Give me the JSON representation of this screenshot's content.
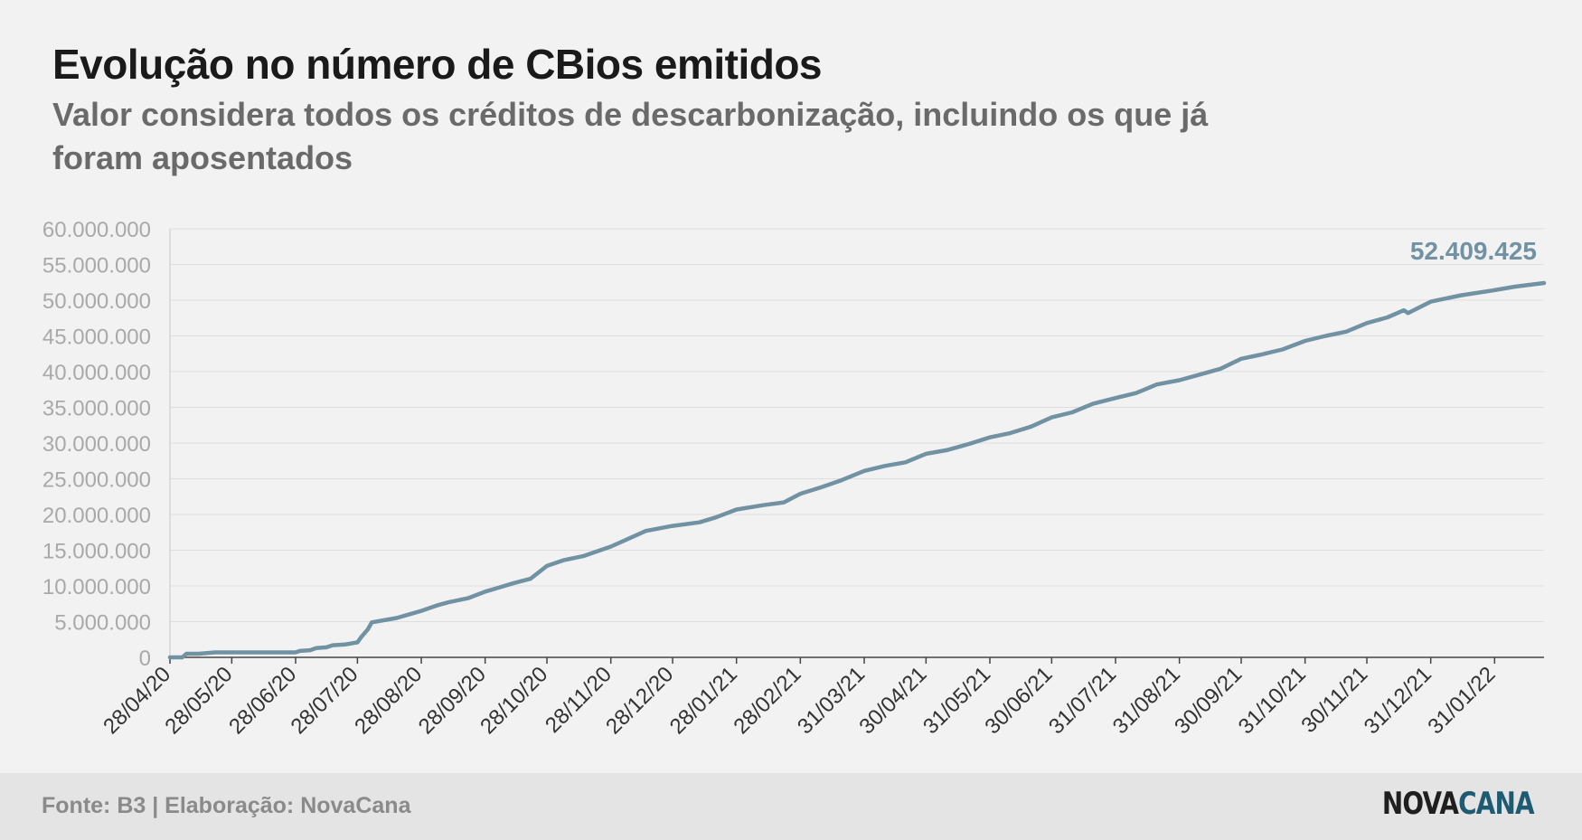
{
  "header": {
    "title": "Evolução no número de CBios emitidos",
    "subtitle": "Valor considera todos os créditos de descarbonização, incluindo os que já foram aposentados"
  },
  "footer": {
    "source": "Fonte: B3 | Elaboração: NovaCana",
    "logo_part1": "NOVA",
    "logo_part2": "CANA"
  },
  "chart_data": {
    "type": "line",
    "title": "Evolução no número de CBios emitidos",
    "subtitle": "Valor considera todos os créditos de descarbonização, incluindo os que já foram aposentados",
    "xlabel": "",
    "ylabel": "",
    "ylim": [
      0,
      60000000
    ],
    "yticks": [
      0,
      5000000,
      10000000,
      15000000,
      20000000,
      25000000,
      30000000,
      35000000,
      40000000,
      45000000,
      50000000,
      55000000,
      60000000
    ],
    "ytick_labels": [
      "0",
      "5.000.000",
      "10.000.000",
      "15.000.000",
      "20.000.000",
      "25.000.000",
      "30.000.000",
      "35.000.000",
      "40.000.000",
      "45.000.000",
      "50.000.000",
      "55.000.000",
      "60.000.000"
    ],
    "xlim": [
      "2020-04-28",
      "2022-02-24"
    ],
    "xticks": [
      "2020-04-28",
      "2020-05-28",
      "2020-06-28",
      "2020-07-28",
      "2020-08-28",
      "2020-09-28",
      "2020-10-28",
      "2020-11-28",
      "2020-12-28",
      "2021-01-28",
      "2021-02-28",
      "2021-03-31",
      "2021-04-30",
      "2021-05-31",
      "2021-06-30",
      "2021-07-31",
      "2021-08-31",
      "2021-09-30",
      "2021-10-31",
      "2021-11-30",
      "2021-12-31",
      "2022-01-31"
    ],
    "xtick_labels": [
      "28/04/20",
      "28/05/20",
      "28/06/20",
      "28/07/20",
      "28/08/20",
      "28/09/20",
      "28/10/20",
      "28/11/20",
      "28/12/20",
      "28/01/21",
      "28/02/21",
      "31/03/21",
      "30/04/21",
      "31/05/21",
      "30/06/21",
      "31/07/21",
      "31/08/21",
      "30/09/21",
      "31/10/21",
      "30/11/21",
      "31/12/21",
      "31/01/22"
    ],
    "grid": true,
    "line_color": "#7092a3",
    "series": [
      {
        "name": "",
        "x": [
          "2020-04-28",
          "2020-05-04",
          "2020-05-06",
          "2020-05-12",
          "2020-05-20",
          "2020-06-28",
          "2020-06-30",
          "2020-07-05",
          "2020-07-08",
          "2020-07-13",
          "2020-07-16",
          "2020-07-22",
          "2020-07-28",
          "2020-07-30",
          "2020-08-02",
          "2020-08-04",
          "2020-08-10",
          "2020-08-16",
          "2020-08-22",
          "2020-08-28",
          "2020-09-05",
          "2020-09-10",
          "2020-09-20",
          "2020-09-28",
          "2020-10-05",
          "2020-10-12",
          "2020-10-20",
          "2020-10-28",
          "2020-11-05",
          "2020-11-15",
          "2020-11-28",
          "2020-12-08",
          "2020-12-15",
          "2020-12-28",
          "2021-01-10",
          "2021-01-18",
          "2021-01-28",
          "2021-02-10",
          "2021-02-20",
          "2021-02-28",
          "2021-03-10",
          "2021-03-20",
          "2021-03-31",
          "2021-04-10",
          "2021-04-20",
          "2021-04-30",
          "2021-05-10",
          "2021-05-20",
          "2021-05-31",
          "2021-06-10",
          "2021-06-20",
          "2021-06-30",
          "2021-07-10",
          "2021-07-20",
          "2021-07-31",
          "2021-08-10",
          "2021-08-20",
          "2021-08-31",
          "2021-09-10",
          "2021-09-20",
          "2021-09-30",
          "2021-10-10",
          "2021-10-20",
          "2021-10-31",
          "2021-11-10",
          "2021-11-20",
          "2021-11-30",
          "2021-12-10",
          "2021-12-18",
          "2021-12-20",
          "2021-12-31",
          "2022-01-05",
          "2022-01-15",
          "2022-01-31",
          "2022-02-10",
          "2022-02-24"
        ],
        "values": [
          0,
          0,
          500000,
          500000,
          700000,
          700000,
          900000,
          1000000,
          1300000,
          1400000,
          1700000,
          1800000,
          2100000,
          2900000,
          3900000,
          4900000,
          5200000,
          5500000,
          6000000,
          6500000,
          7300000,
          7700000,
          8300000,
          9200000,
          9800000,
          10400000,
          11000000,
          12800000,
          13600000,
          14200000,
          15500000,
          16800000,
          17700000,
          18400000,
          18900000,
          19600000,
          20700000,
          21300000,
          21700000,
          22900000,
          23800000,
          24800000,
          26100000,
          26800000,
          27300000,
          28500000,
          29000000,
          29800000,
          30800000,
          31400000,
          32300000,
          33600000,
          34300000,
          35500000,
          36300000,
          37000000,
          38200000,
          38800000,
          39600000,
          40400000,
          41800000,
          42400000,
          43100000,
          44300000,
          45000000,
          45600000,
          46800000,
          47600000,
          48600000,
          48200000,
          49800000,
          50100000,
          50700000,
          51400000,
          51900000,
          52409425
        ]
      }
    ],
    "annotation": "52.409.425"
  }
}
